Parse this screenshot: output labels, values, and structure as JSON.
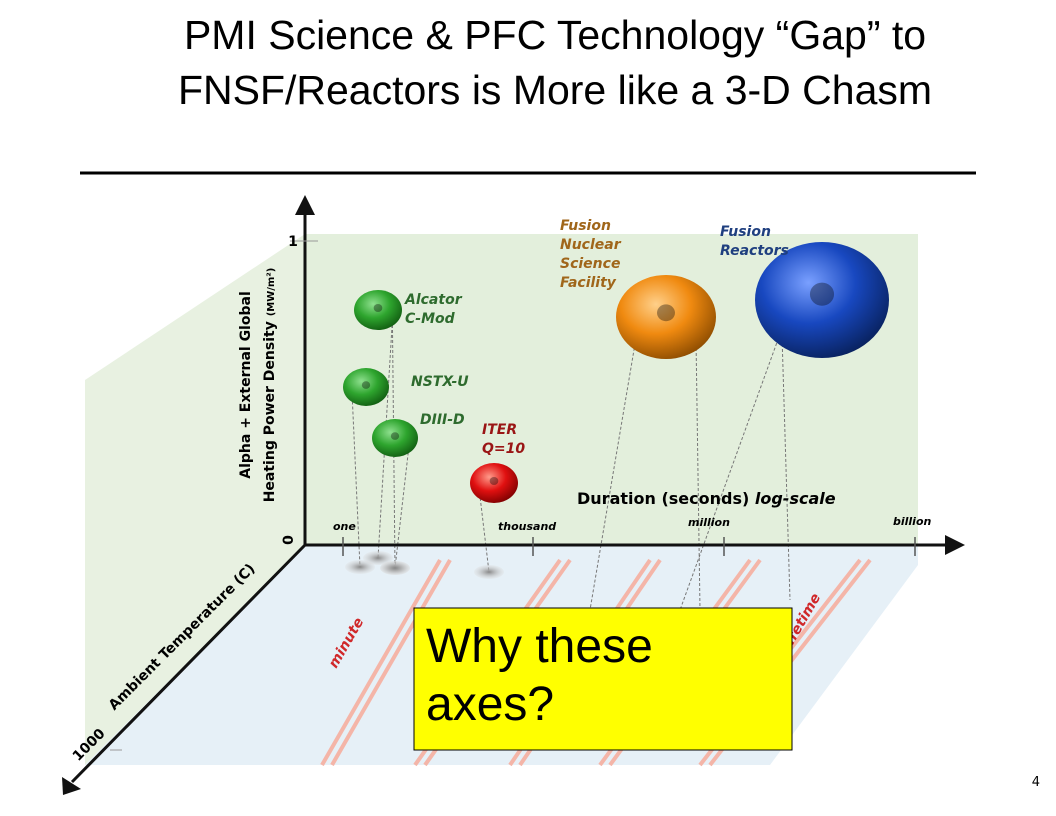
{
  "title": "PMI Science & PFC Technology “Gap” to FNSF/Reactors is More like a 3-D Chasm",
  "diagram": {
    "y_axis": {
      "label_lines": [
        "Alpha + External Global",
        "Heating Power Density"
      ],
      "unit": "(MW/m²)",
      "ticks": [
        "1",
        "0"
      ]
    },
    "x_axis": {
      "label": "Duration (seconds)",
      "scale": "log-scale",
      "ticks": [
        "one",
        "thousand",
        "million",
        "billion"
      ]
    },
    "z_axis": {
      "label": "Ambient Temperature (C)",
      "tick": "1000"
    },
    "floor_labels": [
      "minute",
      "reactor lifetime"
    ],
    "devices": [
      {
        "lines": [
          "Alcator",
          "C-Mod"
        ]
      },
      {
        "lines": [
          "NSTX-U"
        ]
      },
      {
        "lines": [
          "DIII-D"
        ]
      },
      {
        "lines": [
          "ITER",
          "Q=10"
        ]
      },
      {
        "lines": [
          "Fusion",
          "Nuclear",
          "Science",
          "Facility"
        ]
      },
      {
        "lines": [
          "Fusion",
          "Reactors"
        ]
      }
    ]
  },
  "callout": "Why these axes?",
  "page_number": "4"
}
